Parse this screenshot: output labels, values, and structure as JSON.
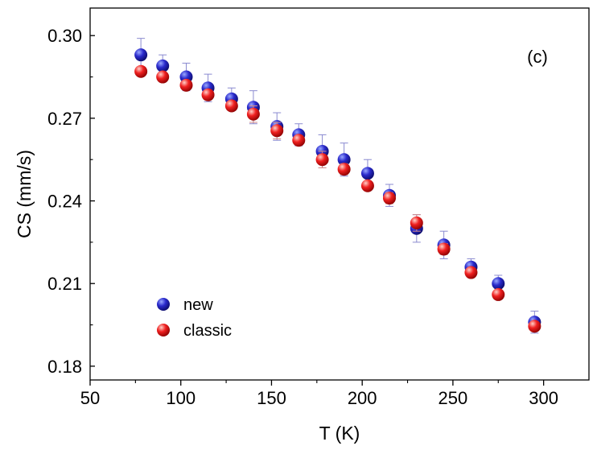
{
  "chart_data": {
    "type": "scatter",
    "panel_label": "(c)",
    "xlabel": "T (K)",
    "ylabel": "CS (mm/s)",
    "xlim": [
      50,
      325
    ],
    "ylim": [
      0.175,
      0.31
    ],
    "x_ticks": [
      50,
      100,
      150,
      200,
      250,
      300
    ],
    "x_tick_labels": [
      "50",
      "100",
      "150",
      "200",
      "250",
      "300"
    ],
    "y_ticks": [
      0.18,
      0.21,
      0.24,
      0.27,
      0.3
    ],
    "y_tick_labels": [
      "0.18",
      "0.21",
      "0.24",
      "0.27",
      "0.30"
    ],
    "grid": false,
    "legend_position": "bottom-left",
    "series": [
      {
        "name": "new",
        "color": "#1c1cb0",
        "x": [
          78,
          90,
          103,
          115,
          128,
          140,
          153,
          165,
          178,
          190,
          203,
          215,
          230,
          245,
          260,
          275,
          295
        ],
        "y": [
          0.293,
          0.289,
          0.285,
          0.281,
          0.277,
          0.274,
          0.267,
          0.264,
          0.258,
          0.255,
          0.25,
          0.242,
          0.23,
          0.224,
          0.216,
          0.21,
          0.196
        ],
        "error": [
          0.006,
          0.004,
          0.005,
          0.005,
          0.004,
          0.006,
          0.005,
          0.004,
          0.006,
          0.006,
          0.005,
          0.004,
          0.005,
          0.005,
          0.003,
          0.003,
          0.004
        ]
      },
      {
        "name": "classic",
        "color": "#e01818",
        "x": [
          78,
          90,
          103,
          115,
          128,
          140,
          153,
          165,
          178,
          190,
          203,
          215,
          230,
          245,
          260,
          275,
          295
        ],
        "y": [
          0.287,
          0.285,
          0.282,
          0.2785,
          0.2745,
          0.2715,
          0.2655,
          0.262,
          0.255,
          0.2515,
          0.2455,
          0.241,
          0.232,
          0.2225,
          0.214,
          0.206,
          0.1945
        ],
        "error": [
          0,
          0,
          0,
          0,
          0,
          0.003,
          0.003,
          0,
          0.003,
          0.002,
          0,
          0.002,
          0.003,
          0.002,
          0,
          0,
          0
        ]
      }
    ]
  }
}
